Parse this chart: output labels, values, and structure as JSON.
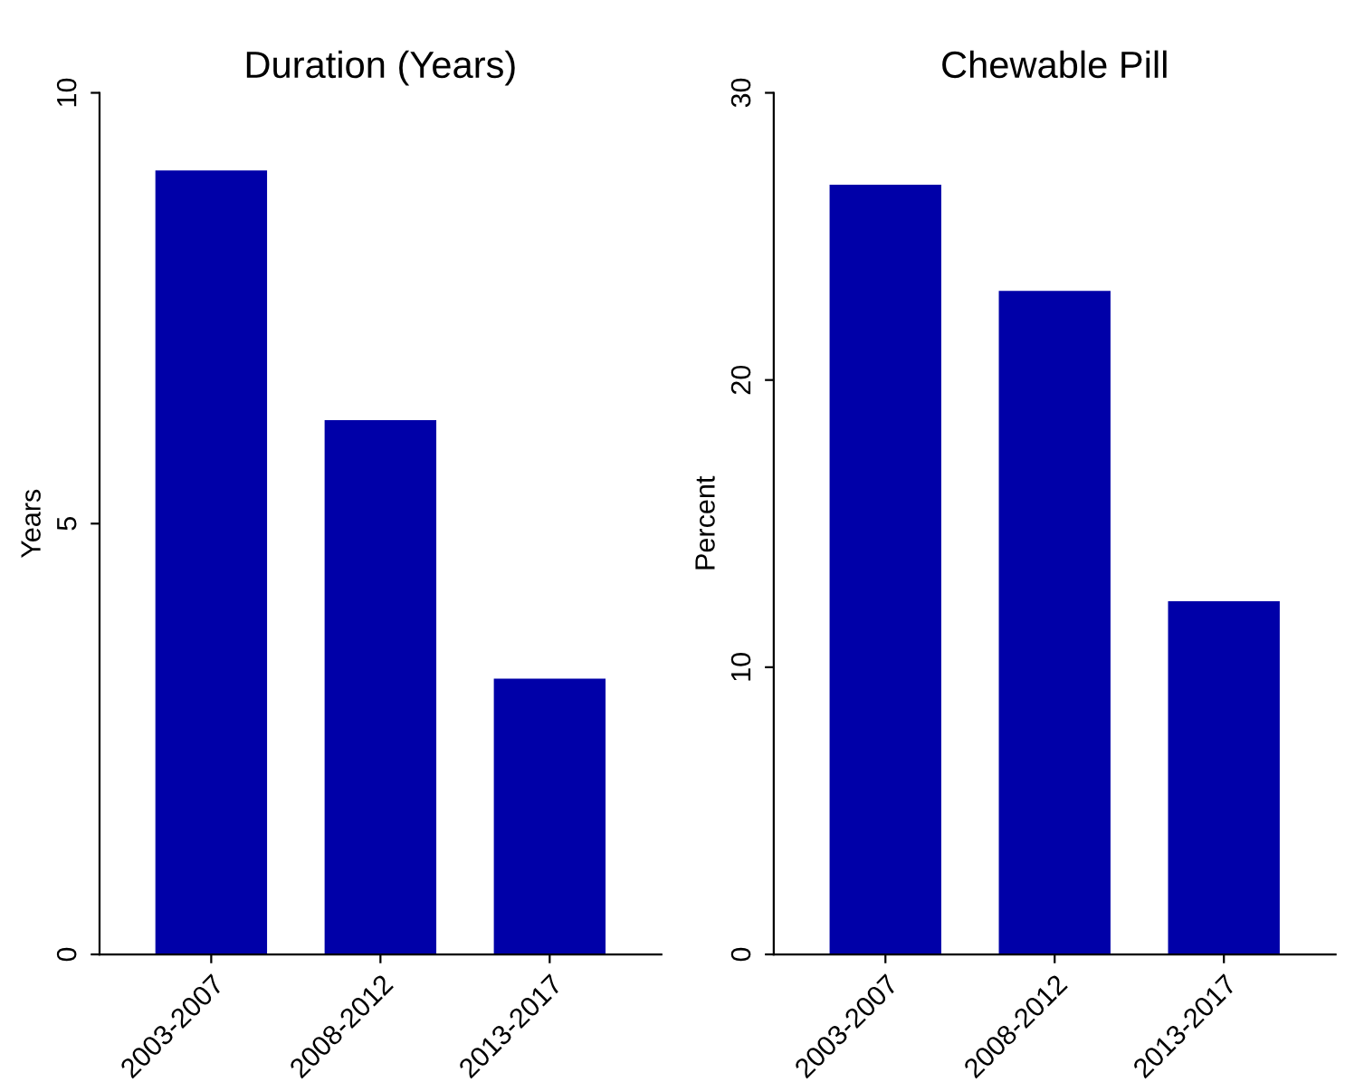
{
  "chart_data": [
    {
      "type": "bar",
      "title": "Duration (Years)",
      "ylabel": "Years",
      "categories": [
        "2003-2007",
        "2008-2012",
        "2013-2017"
      ],
      "values": [
        9.1,
        6.2,
        3.2
      ],
      "color": "#0000a8",
      "ylim": [
        0,
        10
      ],
      "yticks": [
        0,
        5,
        10
      ],
      "grid": false,
      "legend": false
    },
    {
      "type": "bar",
      "title": "Chewable Pill",
      "ylabel": "Percent",
      "categories": [
        "2003-2007",
        "2008-2012",
        "2013-2017"
      ],
      "values": [
        26.8,
        23.1,
        12.3
      ],
      "color": "#0000a8",
      "ylim": [
        0,
        30
      ],
      "yticks": [
        0,
        10,
        20,
        30
      ],
      "grid": false,
      "legend": false
    }
  ]
}
